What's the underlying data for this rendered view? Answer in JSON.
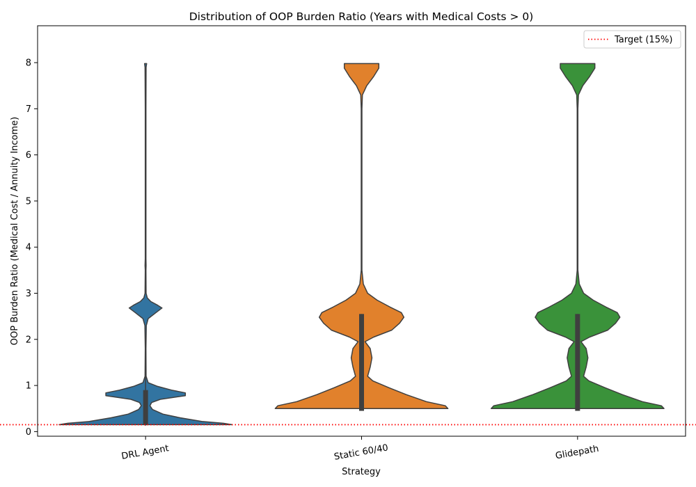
{
  "chart_data": {
    "type": "violin",
    "title": "Distribution of OOP Burden Ratio (Years with Medical Costs > 0)",
    "xlabel": "Strategy",
    "ylabel": "OOP Burden Ratio (Medical Cost / Annuity Income)",
    "ylim": [
      -0.1,
      8.8
    ],
    "yticks": [
      0,
      1,
      2,
      3,
      4,
      5,
      6,
      7,
      8
    ],
    "grid": false,
    "legend_position": "top-right",
    "categories": [
      "DRL Agent",
      "Static 60/40",
      "Glidepath"
    ],
    "target_line": {
      "label": "Target (15%)",
      "value": 0.15,
      "color": "#ff0000",
      "style": "dotted"
    },
    "series": [
      {
        "name": "DRL Agent",
        "color": "#3274a1",
        "box": {
          "q1": 0.15,
          "q3": 0.9,
          "whisker_low": 0.13,
          "whisker_high": 1.42
        },
        "profile": [
          [
            0.15,
            1.0
          ],
          [
            0.18,
            0.9
          ],
          [
            0.22,
            0.65
          ],
          [
            0.3,
            0.4
          ],
          [
            0.38,
            0.2
          ],
          [
            0.48,
            0.08
          ],
          [
            0.56,
            0.05
          ],
          [
            0.63,
            0.07
          ],
          [
            0.7,
            0.17
          ],
          [
            0.78,
            0.46
          ],
          [
            0.84,
            0.46
          ],
          [
            0.9,
            0.3
          ],
          [
            0.98,
            0.14
          ],
          [
            1.06,
            0.03
          ],
          [
            1.2,
            0.006
          ],
          [
            1.8,
            0.004
          ],
          [
            2.3,
            0.008
          ],
          [
            2.45,
            0.03
          ],
          [
            2.58,
            0.12
          ],
          [
            2.68,
            0.19
          ],
          [
            2.74,
            0.14
          ],
          [
            2.82,
            0.06
          ],
          [
            2.9,
            0.02
          ],
          [
            3.0,
            0.006
          ],
          [
            3.5,
            0.004
          ],
          [
            3.6,
            0.006
          ],
          [
            3.75,
            0.004
          ],
          [
            5.0,
            0.004
          ],
          [
            7.0,
            0.004
          ],
          [
            7.9,
            0.006
          ],
          [
            7.98,
            0.012
          ]
        ]
      },
      {
        "name": "Static 60/40",
        "color": "#e1812c",
        "box": {
          "q1": 0.45,
          "q3": 2.55,
          "whisker_low": 0.45,
          "whisker_high": 2.55
        },
        "profile": [
          [
            0.5,
            1.0
          ],
          [
            0.56,
            0.97
          ],
          [
            0.65,
            0.75
          ],
          [
            0.8,
            0.52
          ],
          [
            0.95,
            0.32
          ],
          [
            1.1,
            0.13
          ],
          [
            1.2,
            0.07
          ],
          [
            1.4,
            0.1
          ],
          [
            1.6,
            0.12
          ],
          [
            1.8,
            0.1
          ],
          [
            1.95,
            0.04
          ],
          [
            2.05,
            0.14
          ],
          [
            2.2,
            0.35
          ],
          [
            2.35,
            0.44
          ],
          [
            2.48,
            0.49
          ],
          [
            2.58,
            0.46
          ],
          [
            2.7,
            0.33
          ],
          [
            2.85,
            0.18
          ],
          [
            3.0,
            0.07
          ],
          [
            3.2,
            0.02
          ],
          [
            3.5,
            0.004
          ],
          [
            5.0,
            0.004
          ],
          [
            7.0,
            0.004
          ],
          [
            7.3,
            0.01
          ],
          [
            7.5,
            0.06
          ],
          [
            7.7,
            0.14
          ],
          [
            7.88,
            0.2
          ],
          [
            7.98,
            0.2
          ]
        ]
      },
      {
        "name": "Glidepath",
        "color": "#3a923a",
        "box": {
          "q1": 0.45,
          "q3": 2.55,
          "whisker_low": 0.45,
          "whisker_high": 2.55
        },
        "profile": [
          [
            0.5,
            1.0
          ],
          [
            0.56,
            0.97
          ],
          [
            0.65,
            0.75
          ],
          [
            0.8,
            0.52
          ],
          [
            0.95,
            0.32
          ],
          [
            1.1,
            0.13
          ],
          [
            1.2,
            0.07
          ],
          [
            1.4,
            0.1
          ],
          [
            1.6,
            0.12
          ],
          [
            1.8,
            0.1
          ],
          [
            1.95,
            0.04
          ],
          [
            2.05,
            0.14
          ],
          [
            2.2,
            0.35
          ],
          [
            2.35,
            0.44
          ],
          [
            2.48,
            0.49
          ],
          [
            2.58,
            0.46
          ],
          [
            2.7,
            0.33
          ],
          [
            2.85,
            0.18
          ],
          [
            3.0,
            0.07
          ],
          [
            3.2,
            0.02
          ],
          [
            3.5,
            0.004
          ],
          [
            5.0,
            0.004
          ],
          [
            7.0,
            0.004
          ],
          [
            7.3,
            0.01
          ],
          [
            7.5,
            0.06
          ],
          [
            7.7,
            0.14
          ],
          [
            7.88,
            0.2
          ],
          [
            7.98,
            0.2
          ]
        ]
      }
    ]
  }
}
